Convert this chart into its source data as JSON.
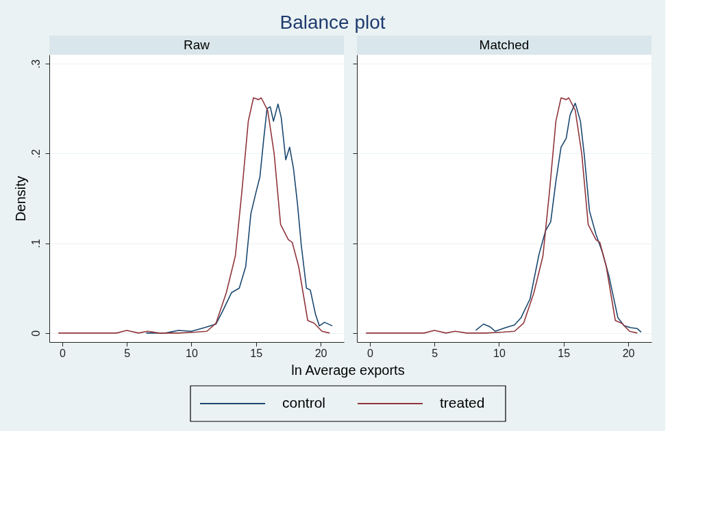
{
  "chart_data": [
    {
      "type": "line",
      "title": "Balance plot",
      "subtitle": "Raw",
      "xlabel": "ln Average exports",
      "ylabel": "Density",
      "xlim": [
        -1,
        21.8
      ],
      "xticks": [
        0,
        5,
        10,
        15,
        20
      ],
      "ylim": [
        -0.01,
        0.31
      ],
      "yticks": [
        {
          "value": 0,
          "label": "0"
        },
        {
          "value": 0.1,
          "label": ".1"
        },
        {
          "value": 0.2,
          "label": ".2"
        },
        {
          "value": 0.3,
          "label": ".3"
        }
      ],
      "grid": "y",
      "legend": "bottom",
      "line_style": "solid",
      "series": [
        {
          "name": "control",
          "color": "#1a476f",
          "x": [
            6.5,
            8.0,
            9.0,
            10.0,
            11.0,
            11.9,
            12.4,
            13.1,
            13.7,
            14.2,
            14.6,
            15.0,
            15.3,
            15.6,
            15.85,
            16.1,
            16.35,
            16.7,
            16.95,
            17.3,
            17.6,
            17.9,
            18.2,
            18.5,
            18.9,
            19.2,
            19.6,
            19.9,
            20.3,
            20.9
          ],
          "values": [
            0,
            0,
            0.003,
            0.002,
            0.006,
            0.01,
            0.024,
            0.045,
            0.05,
            0.074,
            0.133,
            0.157,
            0.174,
            0.217,
            0.25,
            0.252,
            0.236,
            0.255,
            0.24,
            0.193,
            0.207,
            0.183,
            0.145,
            0.098,
            0.05,
            0.048,
            0.021,
            0.008,
            0.012,
            0.008
          ]
        },
        {
          "name": "treated",
          "color": "#90353b",
          "x": [
            -0.3,
            0.7,
            4.2,
            5.0,
            5.9,
            6.6,
            7.5,
            9.0,
            10.3,
            11.2,
            11.9,
            12.7,
            13.4,
            13.9,
            14.4,
            14.8,
            15.2,
            15.4,
            15.9,
            16.4,
            16.9,
            17.5,
            17.8,
            18.3,
            19.0,
            19.5,
            20.1,
            20.7
          ],
          "values": [
            0,
            0,
            0,
            0.003,
            0,
            0.002,
            0,
            0,
            0.001,
            0.002,
            0.011,
            0.045,
            0.086,
            0.157,
            0.236,
            0.262,
            0.26,
            0.262,
            0.248,
            0.2,
            0.121,
            0.104,
            0.101,
            0.074,
            0.014,
            0.011,
            0.002,
            0
          ]
        }
      ]
    },
    {
      "type": "line",
      "subtitle": "Matched",
      "xlim": [
        -1,
        21.8
      ],
      "xticks": [
        0,
        5,
        10,
        15,
        20
      ],
      "ylim": [
        -0.01,
        0.31
      ],
      "yticks": [
        0,
        0.1,
        0.2,
        0.3
      ],
      "grid": "y",
      "tick_labels": "x",
      "line_style": "solid",
      "series": [
        {
          "name": "control",
          "color": "#1a476f",
          "x": [
            8.2,
            8.8,
            9.3,
            9.7,
            10.5,
            11.2,
            11.7,
            12.4,
            13.1,
            13.6,
            14.0,
            14.4,
            14.8,
            15.2,
            15.5,
            15.9,
            16.3,
            16.6,
            17.0,
            17.5,
            18.0,
            18.5,
            19.2,
            19.7,
            20.2,
            20.7,
            21.0
          ],
          "values": [
            0.003,
            0.01,
            0.007,
            0.002,
            0.006,
            0.009,
            0.017,
            0.038,
            0.088,
            0.114,
            0.124,
            0.169,
            0.207,
            0.217,
            0.243,
            0.256,
            0.236,
            0.198,
            0.136,
            0.11,
            0.09,
            0.064,
            0.017,
            0.008,
            0.006,
            0.005,
            0.001
          ]
        },
        {
          "name": "treated",
          "color": "#90353b",
          "x": [
            -0.3,
            0.7,
            4.2,
            5.0,
            5.9,
            6.6,
            7.5,
            9.0,
            10.3,
            11.2,
            11.9,
            12.7,
            13.4,
            13.9,
            14.4,
            14.8,
            15.2,
            15.4,
            15.9,
            16.4,
            16.9,
            17.5,
            17.8,
            18.3,
            19.0,
            19.5,
            20.1,
            20.7
          ],
          "values": [
            0,
            0,
            0,
            0.003,
            0,
            0.002,
            0,
            0,
            0.001,
            0.002,
            0.011,
            0.045,
            0.086,
            0.157,
            0.236,
            0.262,
            0.26,
            0.262,
            0.248,
            0.2,
            0.121,
            0.104,
            0.101,
            0.074,
            0.014,
            0.011,
            0.002,
            0
          ]
        }
      ]
    }
  ]
}
